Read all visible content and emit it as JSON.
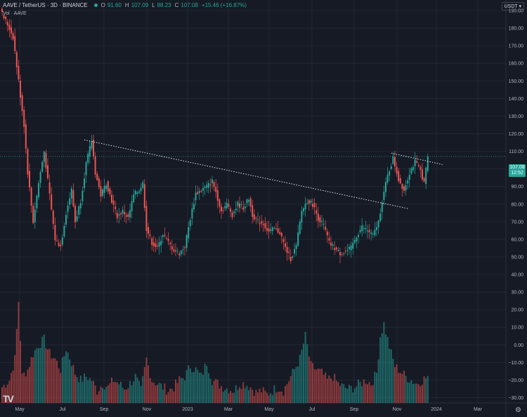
{
  "header": {
    "symbol": "AAVE / TetherUS · 3D · BINANCE",
    "open_label": "O",
    "open": "91.60",
    "high_label": "H",
    "high": "107.09",
    "low_label": "L",
    "low": "88.23",
    "close_label": "C",
    "close": "107.08",
    "change": "+15.46 (+16.87%)",
    "volume_label": "Vol · AAVE",
    "currency": "USDT",
    "price_tag_value": "107.08",
    "price_tag_timer": "12:52"
  },
  "colors": {
    "up": "#26a69a",
    "down": "#ef5350",
    "background": "#161a25",
    "grid": "#232733",
    "text": "#b2b5be",
    "trendline": "#e0e3eb"
  },
  "chart_data": {
    "type": "candlestick",
    "x_axis": {
      "ticks": [
        "May",
        "Jul",
        "Sep",
        "Nov",
        "2023",
        "Mar",
        "May",
        "Jul",
        "Sep",
        "Nov",
        "2024",
        "Mar"
      ]
    },
    "y_axis": {
      "ticks": [
        "190.00",
        "180.00",
        "170.00",
        "160.00",
        "150.00",
        "140.00",
        "130.00",
        "120.00",
        "110.00",
        "100.00",
        "90.00",
        "80.00",
        "70.00",
        "60.00",
        "50.00",
        "40.00",
        "30.00",
        "20.00",
        "10.00",
        "0.00",
        "−10.00",
        "−20.00",
        "−30.00"
      ],
      "range": [
        -33,
        196
      ]
    },
    "price_anchors": [
      [
        0,
        188
      ],
      [
        3,
        182
      ],
      [
        6,
        175
      ],
      [
        9,
        150
      ],
      [
        12,
        125
      ],
      [
        14,
        98
      ],
      [
        17,
        70
      ],
      [
        20,
        92
      ],
      [
        23,
        110
      ],
      [
        26,
        85
      ],
      [
        29,
        60
      ],
      [
        32,
        56
      ],
      [
        35,
        75
      ],
      [
        38,
        88
      ],
      [
        40,
        70
      ],
      [
        43,
        82
      ],
      [
        46,
        103
      ],
      [
        49,
        116
      ],
      [
        51,
        98
      ],
      [
        54,
        85
      ],
      [
        57,
        92
      ],
      [
        60,
        82
      ],
      [
        63,
        73
      ],
      [
        66,
        76
      ],
      [
        69,
        72
      ],
      [
        72,
        85
      ],
      [
        75,
        88
      ],
      [
        77,
        92
      ],
      [
        79,
        66
      ],
      [
        82,
        58
      ],
      [
        85,
        55
      ],
      [
        88,
        63
      ],
      [
        91,
        58
      ],
      [
        94,
        54
      ],
      [
        97,
        52
      ],
      [
        100,
        56
      ],
      [
        103,
        72
      ],
      [
        106,
        86
      ],
      [
        109,
        88
      ],
      [
        112,
        90
      ],
      [
        115,
        93
      ],
      [
        117,
        87
      ],
      [
        120,
        76
      ],
      [
        123,
        80
      ],
      [
        126,
        74
      ],
      [
        129,
        80
      ],
      [
        132,
        78
      ],
      [
        135,
        83
      ],
      [
        137,
        74
      ],
      [
        140,
        70
      ],
      [
        143,
        69
      ],
      [
        146,
        64
      ],
      [
        149,
        66
      ],
      [
        152,
        64
      ],
      [
        155,
        55
      ],
      [
        158,
        49
      ],
      [
        161,
        56
      ],
      [
        164,
        76
      ],
      [
        167,
        82
      ],
      [
        170,
        80
      ],
      [
        173,
        72
      ],
      [
        176,
        68
      ],
      [
        179,
        58
      ],
      [
        182,
        55
      ],
      [
        185,
        52
      ],
      [
        188,
        53
      ],
      [
        191,
        55
      ],
      [
        194,
        62
      ],
      [
        197,
        67
      ],
      [
        200,
        65
      ],
      [
        203,
        62
      ],
      [
        206,
        70
      ],
      [
        208,
        82
      ],
      [
        211,
        96
      ],
      [
        214,
        106
      ],
      [
        217,
        94
      ],
      [
        220,
        88
      ],
      [
        223,
        98
      ],
      [
        226,
        104
      ],
      [
        229,
        99
      ],
      [
        231,
        92
      ],
      [
        233,
        107
      ]
    ],
    "volume_anchors": [
      [
        0,
        -24
      ],
      [
        4,
        -20
      ],
      [
        7,
        -8
      ],
      [
        9,
        25
      ],
      [
        11,
        -18
      ],
      [
        14,
        -14
      ],
      [
        17,
        -5
      ],
      [
        20,
        0
      ],
      [
        23,
        3
      ],
      [
        26,
        -5
      ],
      [
        29,
        -8
      ],
      [
        32,
        -14
      ],
      [
        35,
        -2
      ],
      [
        38,
        -10
      ],
      [
        40,
        -16
      ],
      [
        43,
        -20
      ],
      [
        46,
        -18
      ],
      [
        49,
        -20
      ],
      [
        52,
        -26
      ],
      [
        55,
        -22
      ],
      [
        58,
        -24
      ],
      [
        61,
        -20
      ],
      [
        64,
        -22
      ],
      [
        67,
        -25
      ],
      [
        70,
        -22
      ],
      [
        73,
        -18
      ],
      [
        76,
        -26
      ],
      [
        79,
        -8
      ],
      [
        82,
        -20
      ],
      [
        85,
        -22
      ],
      [
        88,
        -24
      ],
      [
        91,
        -26
      ],
      [
        94,
        -24
      ],
      [
        97,
        -20
      ],
      [
        100,
        -18
      ],
      [
        103,
        -12
      ],
      [
        106,
        -14
      ],
      [
        109,
        -18
      ],
      [
        112,
        -10
      ],
      [
        115,
        -20
      ],
      [
        118,
        -22
      ],
      [
        121,
        -24
      ],
      [
        124,
        -25
      ],
      [
        127,
        -26
      ],
      [
        130,
        -22
      ],
      [
        133,
        -22
      ],
      [
        136,
        -24
      ],
      [
        139,
        -27
      ],
      [
        142,
        -26
      ],
      [
        145,
        -28
      ],
      [
        148,
        -26
      ],
      [
        151,
        -24
      ],
      [
        154,
        -26
      ],
      [
        157,
        -20
      ],
      [
        160,
        -14
      ],
      [
        163,
        -8
      ],
      [
        166,
        5
      ],
      [
        169,
        -12
      ],
      [
        172,
        -14
      ],
      [
        175,
        -16
      ],
      [
        178,
        -20
      ],
      [
        181,
        -18
      ],
      [
        184,
        -22
      ],
      [
        187,
        -24
      ],
      [
        190,
        -25
      ],
      [
        193,
        -24
      ],
      [
        196,
        -22
      ],
      [
        199,
        -20
      ],
      [
        202,
        -22
      ],
      [
        205,
        -16
      ],
      [
        207,
        5
      ],
      [
        209,
        12
      ],
      [
        211,
        3
      ],
      [
        213,
        -5
      ],
      [
        215,
        -12
      ],
      [
        218,
        -15
      ],
      [
        221,
        -18
      ],
      [
        224,
        -20
      ],
      [
        227,
        -22
      ],
      [
        230,
        -20
      ],
      [
        233,
        -18
      ]
    ],
    "trendlines": [
      {
        "from": {
          "bar": 45,
          "price": 116.5
        },
        "to": {
          "bar": 222,
          "price": 77.5
        }
      },
      {
        "from": {
          "bar": 213,
          "price": 109
        },
        "to": {
          "bar": 241,
          "price": 102.5
        }
      }
    ],
    "last_price": 107.08,
    "last_price_color": "#26a69a"
  }
}
